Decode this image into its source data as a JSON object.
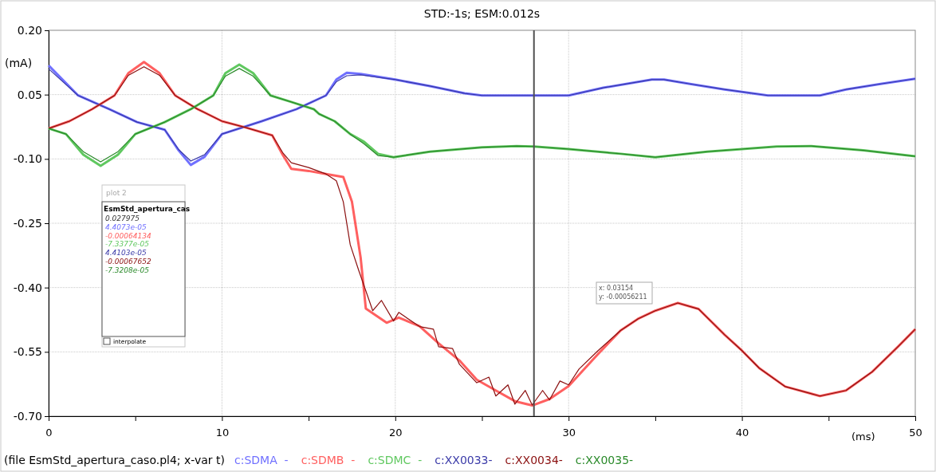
{
  "chart_data": {
    "type": "line",
    "title": "STD:-1s; ESM:0.012s",
    "xlabel": "(ms)",
    "ylabel": "(mA)",
    "xlim": [
      0,
      50
    ],
    "xticks": [
      0,
      {
        "value": 5,
        "label": null
      },
      10,
      {
        "value": 15,
        "label": null
      },
      20,
      {
        "value": 25,
        "label": null
      },
      30,
      {
        "value": 35,
        "label": null
      },
      40,
      {
        "value": 45,
        "label": null
      },
      50
    ],
    "ylim": [
      -0.7,
      0.2
    ],
    "yticks": [
      {
        "value": 0.2,
        "label": "0.20"
      },
      0.05,
      {
        "value": -0.1,
        "label": "-0.10"
      },
      -0.25,
      {
        "value": -0.4,
        "label": "-0.40"
      },
      -0.55,
      {
        "value": -0.7,
        "label": "-0.70"
      }
    ],
    "grid": true,
    "legend": "bottom",
    "marker": "none",
    "line_style": "solid",
    "ref_lines": [
      {
        "axis": "x",
        "value": 28,
        "color": "#505050"
      }
    ],
    "annotations": [
      "(file EsmStd_apertura_caso.pl4; x-var t)",
      "plot 2",
      "EsmStd_apertura_cas",
      "0.027975",
      "4.4073e-05",
      "-0.00064134",
      "-7.3377e-05",
      "4.4103e-05",
      "-0.00067652",
      "-7.3208e-05",
      "interpolate",
      "x: 0.03154",
      "y: -0.00056211"
    ],
    "series": [
      {
        "name": "c:SDMA  -",
        "color": "#7070ff",
        "x": [
          0,
          1.7,
          3.5,
          5.1,
          6.7,
          7.5,
          8.2,
          9,
          10,
          12.3,
          14.3,
          16,
          16.6,
          17.2,
          18,
          20,
          22,
          24,
          25,
          30,
          32,
          34.8,
          35.5,
          37,
          39,
          41.5,
          44.5,
          46,
          48,
          50
        ],
        "values": [
          0.118,
          0.048,
          0.016,
          -0.014,
          -0.032,
          -0.08,
          -0.114,
          -0.095,
          -0.042,
          -0.012,
          0.016,
          0.048,
          0.085,
          0.101,
          0.098,
          0.085,
          0.07,
          0.053,
          0.048,
          0.048,
          0.066,
          0.085,
          0.085,
          0.075,
          0.062,
          0.048,
          0.048,
          0.062,
          0.075,
          0.087
        ]
      },
      {
        "name": "c:SDMB  -",
        "color": "#ff6060",
        "x": [
          0,
          1.2,
          2.5,
          3.8,
          4.6,
          5.5,
          6.4,
          7.3,
          8.6,
          10,
          11.4,
          12.9,
          13.5,
          14,
          15,
          16,
          17,
          17.5,
          18,
          18.3,
          19.5,
          20.2,
          21.4,
          22.5,
          23.7,
          24.7,
          25.8,
          26.9,
          27.9,
          28.9,
          30,
          31.7,
          33,
          34,
          35,
          36.3,
          37.5,
          39,
          40,
          41,
          42.5,
          44.5,
          46,
          47.5,
          49,
          50
        ],
        "values": [
          -0.029,
          -0.012,
          0.016,
          0.048,
          0.1,
          0.126,
          0.1,
          0.048,
          0.016,
          -0.012,
          -0.027,
          -0.045,
          -0.09,
          -0.123,
          -0.128,
          -0.135,
          -0.142,
          -0.2,
          -0.33,
          -0.449,
          -0.482,
          -0.47,
          -0.49,
          -0.53,
          -0.57,
          -0.615,
          -0.64,
          -0.665,
          -0.675,
          -0.66,
          -0.63,
          -0.555,
          -0.5,
          -0.473,
          -0.454,
          -0.436,
          -0.45,
          -0.51,
          -0.547,
          -0.588,
          -0.631,
          -0.653,
          -0.64,
          -0.597,
          -0.538,
          -0.497
        ]
      },
      {
        "name": "c:SDMC  -",
        "color": "#60c860",
        "x": [
          0,
          1,
          2,
          3,
          4,
          5,
          6.7,
          8.2,
          9.5,
          10.2,
          11,
          11.8,
          12.8,
          14,
          15.3,
          15.6,
          16.5,
          17.4,
          18.2,
          19,
          19.9,
          22,
          25,
          27,
          28,
          30,
          33,
          35,
          38,
          42,
          44,
          47,
          50
        ],
        "values": [
          -0.029,
          -0.042,
          -0.09,
          -0.116,
          -0.09,
          -0.042,
          -0.014,
          0.016,
          0.048,
          0.1,
          0.12,
          0.1,
          0.048,
          0.033,
          0.016,
          0.005,
          -0.012,
          -0.042,
          -0.06,
          -0.088,
          -0.096,
          -0.083,
          -0.073,
          -0.07,
          -0.071,
          -0.077,
          -0.088,
          -0.096,
          -0.083,
          -0.071,
          -0.07,
          -0.08,
          -0.094
        ]
      },
      {
        "name": "c:XX0033-",
        "color": "#3a3aa8",
        "x": [
          0,
          1.7,
          3.5,
          5.1,
          6.7,
          7.5,
          8.2,
          9,
          10,
          12.3,
          14.3,
          16,
          16.6,
          17.2,
          18,
          20,
          22,
          24,
          25,
          30,
          32,
          34.8,
          35.5,
          37,
          39,
          41.5,
          44.5,
          46,
          48,
          50
        ],
        "values": [
          0.11,
          0.048,
          0.016,
          -0.014,
          -0.032,
          -0.078,
          -0.105,
          -0.09,
          -0.042,
          -0.012,
          0.016,
          0.048,
          0.08,
          0.094,
          0.096,
          0.085,
          0.07,
          0.053,
          0.048,
          0.048,
          0.066,
          0.085,
          0.085,
          0.075,
          0.062,
          0.048,
          0.048,
          0.062,
          0.075,
          0.087
        ]
      },
      {
        "name": "c:XX0034-",
        "color": "#8b1010",
        "x": [
          0,
          1.2,
          2.5,
          3.8,
          4.6,
          5.5,
          6.4,
          7.3,
          8.6,
          10,
          11.4,
          12.9,
          13.5,
          14,
          15,
          16,
          16.6,
          17,
          17.4,
          17.9,
          18.7,
          19.2,
          19.9,
          20.2,
          21.4,
          22.2,
          22.5,
          23.3,
          23.7,
          24.7,
          25.4,
          25.8,
          26.5,
          26.9,
          27.5,
          27.9,
          28.5,
          28.9,
          29.5,
          30,
          30.6,
          31.7,
          33,
          34,
          35,
          36.3,
          37.5,
          39,
          40,
          41,
          42.5,
          44.5,
          46,
          47.5,
          49,
          50
        ],
        "values": [
          -0.029,
          -0.012,
          0.016,
          0.048,
          0.095,
          0.115,
          0.095,
          0.048,
          0.016,
          -0.012,
          -0.027,
          -0.045,
          -0.085,
          -0.109,
          -0.12,
          -0.135,
          -0.151,
          -0.2,
          -0.3,
          -0.361,
          -0.454,
          -0.43,
          -0.478,
          -0.458,
          -0.491,
          -0.497,
          -0.538,
          -0.542,
          -0.579,
          -0.622,
          -0.609,
          -0.653,
          -0.627,
          -0.672,
          -0.64,
          -0.674,
          -0.64,
          -0.662,
          -0.618,
          -0.627,
          -0.59,
          -0.547,
          -0.5,
          -0.473,
          -0.454,
          -0.436,
          -0.45,
          -0.51,
          -0.547,
          -0.588,
          -0.631,
          -0.653,
          -0.64,
          -0.597,
          -0.538,
          -0.497
        ]
      },
      {
        "name": "c:XX0035-",
        "color": "#2a8a2a",
        "x": [
          0,
          1,
          2,
          3,
          4,
          5,
          6.7,
          8.2,
          9.5,
          10.2,
          11,
          11.8,
          12.8,
          14,
          15.3,
          15.6,
          16.5,
          17.4,
          18.2,
          19,
          19.9,
          22,
          25,
          27,
          28,
          30,
          33,
          35,
          38,
          42,
          44,
          47,
          50
        ],
        "values": [
          -0.029,
          -0.042,
          -0.083,
          -0.107,
          -0.083,
          -0.042,
          -0.014,
          0.016,
          0.048,
          0.093,
          0.111,
          0.093,
          0.048,
          0.033,
          0.016,
          0.005,
          -0.012,
          -0.042,
          -0.065,
          -0.092,
          -0.096,
          -0.083,
          -0.073,
          -0.07,
          -0.071,
          -0.077,
          -0.088,
          -0.096,
          -0.083,
          -0.071,
          -0.07,
          -0.08,
          -0.094
        ]
      }
    ]
  }
}
